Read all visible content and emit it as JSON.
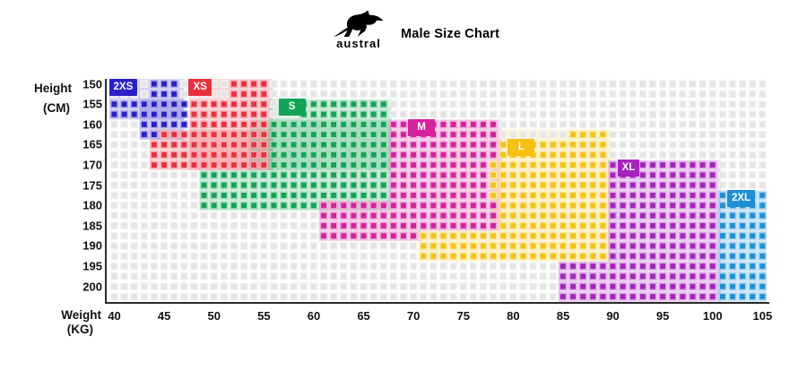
{
  "header": {
    "brand": "austral",
    "title": "Male Size Chart",
    "logo_icon": "kangaroo-icon"
  },
  "y_axis": {
    "line1": "Height",
    "line2": "(CM)",
    "ticks": [
      150,
      155,
      160,
      165,
      170,
      175,
      180,
      185,
      190,
      195,
      200
    ]
  },
  "x_axis": {
    "line1": "Weight",
    "line2": "(KG)",
    "ticks": [
      40,
      45,
      50,
      55,
      60,
      65,
      70,
      75,
      80,
      85,
      90,
      95,
      100,
      105
    ]
  },
  "chart_data": {
    "type": "heatmap",
    "title": "Male Size Chart",
    "x_unit": "kg",
    "y_unit": "cm",
    "x_range": [
      40,
      105
    ],
    "y_range": [
      150,
      202.5
    ],
    "grid": {
      "cols": 66,
      "rows": 22,
      "cell_kg": 1,
      "cell_cm": 2.5,
      "empty_color": "#e4e4e4",
      "empty_halo": "#f1f1f1",
      "tint_opacity": 0.2
    },
    "sizes": [
      {
        "name": "2XS",
        "color": "#2921c7",
        "weight_kg": [
          40,
          47
        ],
        "height_cm": [
          150,
          163
        ],
        "label_cell": {
          "row": 0,
          "col": 0
        },
        "strips": [
          [
            0,
            1,
            4,
            6
          ],
          [
            2,
            3,
            0,
            7
          ],
          [
            4,
            4,
            3,
            7
          ],
          [
            5,
            5,
            3,
            4
          ]
        ],
        "tints": [
          [
            0,
            4,
            0,
            7.5
          ],
          [
            2,
            6,
            3,
            7.5
          ]
        ]
      },
      {
        "name": "XS",
        "color": "#ea303e",
        "weight_kg": [
          44,
          55
        ],
        "height_cm": [
          150,
          171
        ],
        "label_cell": {
          "row": 0,
          "col": 8
        },
        "strips": [
          [
            0,
            1,
            12,
            15
          ],
          [
            2,
            4,
            8,
            15
          ],
          [
            5,
            5,
            5,
            15
          ],
          [
            6,
            8,
            4,
            15
          ]
        ],
        "tints": [
          [
            0,
            9,
            8,
            16.4
          ],
          [
            5,
            9,
            4,
            16.4
          ]
        ]
      },
      {
        "name": "S",
        "color": "#12a456",
        "weight_kg": [
          49,
          67
        ],
        "height_cm": [
          155,
          181
        ],
        "label_cell": {
          "row": 2,
          "col": 17
        },
        "strips": [
          [
            2,
            3,
            19,
            27
          ],
          [
            4,
            8,
            16,
            27
          ],
          [
            9,
            11,
            9,
            27
          ],
          [
            12,
            12,
            9,
            20
          ]
        ],
        "tints": [
          [
            2,
            9,
            16,
            28.3
          ],
          [
            4,
            9,
            14,
            28.3
          ],
          [
            9,
            13,
            9,
            28.3
          ]
        ]
      },
      {
        "name": "M",
        "color": "#d6219c",
        "weight_kg": [
          61,
          78
        ],
        "height_cm": [
          160,
          189
        ],
        "label_cell": {
          "row": 4,
          "col": 30
        },
        "strips": [
          [
            4,
            8,
            28,
            38
          ],
          [
            9,
            11,
            28,
            37
          ],
          [
            12,
            14,
            21,
            38
          ],
          [
            15,
            15,
            21,
            30
          ]
        ],
        "tints": [
          [
            4,
            12,
            28,
            39.3
          ],
          [
            12,
            15,
            21,
            39.3
          ],
          [
            15,
            16,
            21,
            31.3
          ]
        ]
      },
      {
        "name": "L",
        "color": "#f7c112",
        "weight_kg": [
          71,
          89
        ],
        "height_cm": [
          162,
          194
        ],
        "label_cell": {
          "row": 6,
          "col": 40
        },
        "strips": [
          [
            5,
            5,
            46,
            49
          ],
          [
            6,
            7,
            39,
            49
          ],
          [
            8,
            11,
            38,
            49
          ],
          [
            12,
            14,
            39,
            49
          ],
          [
            15,
            17,
            31,
            49
          ]
        ],
        "tints": [
          [
            5,
            8,
            39,
            50.3
          ],
          [
            8,
            15,
            38.3,
            50.3
          ],
          [
            15,
            18,
            31,
            50.3
          ]
        ]
      },
      {
        "name": "XL",
        "color": "#a623bd",
        "weight_kg": [
          85,
          100
        ],
        "height_cm": [
          170,
          202
        ],
        "label_cell": {
          "row": 8,
          "col": 51
        },
        "strips": [
          [
            8,
            9,
            50,
            60
          ],
          [
            10,
            17,
            50,
            60
          ],
          [
            18,
            21,
            45,
            60
          ]
        ],
        "tints": [
          [
            8,
            18,
            50,
            61.3
          ],
          [
            18,
            22,
            45,
            61.3
          ]
        ]
      },
      {
        "name": "2XL",
        "color": "#1f8fd6",
        "weight_kg": [
          101,
          105
        ],
        "height_cm": [
          177,
          202
        ],
        "label_cell": {
          "row": 11,
          "col": 62
        },
        "strips": [
          [
            11,
            12,
            61,
            65
          ],
          [
            13,
            21,
            61,
            65
          ]
        ],
        "tints": [
          [
            11,
            22,
            61,
            65.9
          ]
        ]
      }
    ]
  }
}
